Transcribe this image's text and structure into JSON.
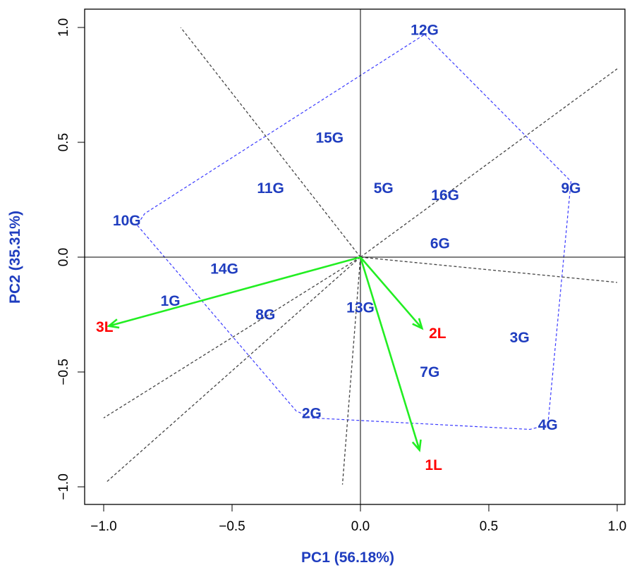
{
  "colors": {
    "genotype": "#1f3dbf",
    "environment": "#ff0000",
    "vector": "#22ee22",
    "hull": "#3b3bff",
    "sector": "#444444",
    "axis_title": "#1f3dbf"
  },
  "chart_data": {
    "type": "scatter",
    "title": "",
    "xlabel": "PC1 (56.18%)",
    "ylabel": "PC2 (35.31%)",
    "xlim": [
      -1.08,
      1.02
    ],
    "ylim": [
      -1.08,
      1.08
    ],
    "x_ticks": [
      {
        "value": -1.0,
        "label": "−1.0"
      },
      {
        "value": -0.5,
        "label": "−0.5"
      },
      {
        "value": 0.0,
        "label": "0.0"
      },
      {
        "value": 0.5,
        "label": "0.5"
      },
      {
        "value": 1.0,
        "label": "1.0"
      }
    ],
    "y_ticks": [
      {
        "value": -1.0,
        "label": "−1.0"
      },
      {
        "value": -0.5,
        "label": "−0.5"
      },
      {
        "value": 0.0,
        "label": "0.0"
      },
      {
        "value": 0.5,
        "label": "0.5"
      },
      {
        "value": 1.0,
        "label": "1.0"
      }
    ],
    "grid": false,
    "reference_lines": {
      "x": 0,
      "y": 0
    },
    "genotypes": [
      {
        "label": "1G",
        "x": -0.74,
        "y": -0.19
      },
      {
        "label": "2G",
        "x": -0.19,
        "y": -0.68
      },
      {
        "label": "3G",
        "x": 0.62,
        "y": -0.35
      },
      {
        "label": "4G",
        "x": 0.73,
        "y": -0.73
      },
      {
        "label": "5G",
        "x": 0.09,
        "y": 0.3
      },
      {
        "label": "6G",
        "x": 0.31,
        "y": 0.06
      },
      {
        "label": "7G",
        "x": 0.27,
        "y": -0.5
      },
      {
        "label": "8G",
        "x": -0.37,
        "y": -0.25
      },
      {
        "label": "9G",
        "x": 0.82,
        "y": 0.3
      },
      {
        "label": "10G",
        "x": -0.91,
        "y": 0.16
      },
      {
        "label": "11G",
        "x": -0.35,
        "y": 0.3
      },
      {
        "label": "12G",
        "x": 0.25,
        "y": 0.99
      },
      {
        "label": "13G",
        "x": 0.0,
        "y": -0.22
      },
      {
        "label": "14G",
        "x": -0.53,
        "y": -0.05
      },
      {
        "label": "15G",
        "x": -0.12,
        "y": 0.52
      },
      {
        "label": "16G",
        "x": 0.33,
        "y": 0.27
      }
    ],
    "environments": [
      {
        "label": "1L",
        "x": 0.23,
        "y": -0.84
      },
      {
        "label": "2L",
        "x": 0.24,
        "y": -0.31
      },
      {
        "label": "3L",
        "x": -0.98,
        "y": -0.3
      }
    ],
    "hull_polygon": [
      {
        "x": 0.25,
        "y": 0.97
      },
      {
        "x": 0.82,
        "y": 0.33
      },
      {
        "x": 0.73,
        "y": -0.73
      },
      {
        "x": 0.66,
        "y": -0.75
      },
      {
        "x": -0.19,
        "y": -0.7
      },
      {
        "x": -0.25,
        "y": -0.67
      },
      {
        "x": -0.87,
        "y": 0.14
      },
      {
        "x": -0.84,
        "y": 0.19
      }
    ],
    "sector_lines": [
      {
        "x": -0.7,
        "y": 1.0
      },
      {
        "x": 1.0,
        "y": 0.82
      },
      {
        "x": 1.0,
        "y": -0.11
      },
      {
        "x": -0.07,
        "y": -0.99
      },
      {
        "x": -0.99,
        "y": -0.98
      },
      {
        "x": -1.0,
        "y": -0.7
      }
    ]
  }
}
